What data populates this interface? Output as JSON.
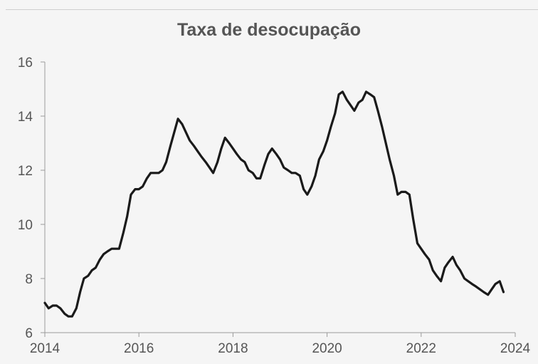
{
  "chart_data": {
    "type": "line",
    "title": "Taxa de desocupação",
    "xlabel": "",
    "ylabel": "",
    "xlim": [
      2014,
      2024
    ],
    "ylim": [
      6,
      16
    ],
    "xticks": [
      "2014",
      "2016",
      "2018",
      "2020",
      "2022",
      "2024"
    ],
    "yticks": [
      "6",
      "8",
      "10",
      "12",
      "14",
      "16"
    ],
    "grid": false,
    "legend": "none",
    "series": [
      {
        "color": "#1a1a1a",
        "points": [
          [
            2014.0,
            7.1
          ],
          [
            2014.08,
            6.9
          ],
          [
            2014.17,
            7.0
          ],
          [
            2014.25,
            7.0
          ],
          [
            2014.33,
            6.9
          ],
          [
            2014.42,
            6.7
          ],
          [
            2014.5,
            6.6
          ],
          [
            2014.58,
            6.6
          ],
          [
            2014.67,
            6.9
          ],
          [
            2014.75,
            7.5
          ],
          [
            2014.83,
            8.0
          ],
          [
            2014.92,
            8.1
          ],
          [
            2015.0,
            8.3
          ],
          [
            2015.08,
            8.4
          ],
          [
            2015.17,
            8.7
          ],
          [
            2015.25,
            8.9
          ],
          [
            2015.33,
            9.0
          ],
          [
            2015.42,
            9.1
          ],
          [
            2015.5,
            9.1
          ],
          [
            2015.58,
            9.1
          ],
          [
            2015.67,
            9.7
          ],
          [
            2015.75,
            10.3
          ],
          [
            2015.83,
            11.1
          ],
          [
            2015.92,
            11.3
          ],
          [
            2016.0,
            11.3
          ],
          [
            2016.08,
            11.4
          ],
          [
            2016.17,
            11.7
          ],
          [
            2016.25,
            11.9
          ],
          [
            2016.33,
            11.9
          ],
          [
            2016.42,
            11.9
          ],
          [
            2016.5,
            12.0
          ],
          [
            2016.58,
            12.3
          ],
          [
            2016.67,
            12.9
          ],
          [
            2016.75,
            13.4
          ],
          [
            2016.83,
            13.9
          ],
          [
            2016.92,
            13.7
          ],
          [
            2017.0,
            13.4
          ],
          [
            2017.08,
            13.1
          ],
          [
            2017.17,
            12.9
          ],
          [
            2017.25,
            12.7
          ],
          [
            2017.33,
            12.5
          ],
          [
            2017.42,
            12.3
          ],
          [
            2017.5,
            12.1
          ],
          [
            2017.58,
            11.9
          ],
          [
            2017.67,
            12.3
          ],
          [
            2017.75,
            12.8
          ],
          [
            2017.83,
            13.2
          ],
          [
            2017.92,
            13.0
          ],
          [
            2018.0,
            12.8
          ],
          [
            2018.08,
            12.6
          ],
          [
            2018.17,
            12.4
          ],
          [
            2018.25,
            12.3
          ],
          [
            2018.33,
            12.0
          ],
          [
            2018.42,
            11.9
          ],
          [
            2018.5,
            11.7
          ],
          [
            2018.58,
            11.7
          ],
          [
            2018.67,
            12.2
          ],
          [
            2018.75,
            12.6
          ],
          [
            2018.83,
            12.8
          ],
          [
            2018.92,
            12.6
          ],
          [
            2019.0,
            12.4
          ],
          [
            2019.08,
            12.1
          ],
          [
            2019.17,
            12.0
          ],
          [
            2019.25,
            11.9
          ],
          [
            2019.33,
            11.9
          ],
          [
            2019.42,
            11.8
          ],
          [
            2019.5,
            11.3
          ],
          [
            2019.58,
            11.1
          ],
          [
            2019.67,
            11.4
          ],
          [
            2019.75,
            11.8
          ],
          [
            2019.83,
            12.4
          ],
          [
            2019.92,
            12.7
          ],
          [
            2020.0,
            13.1
          ],
          [
            2020.08,
            13.6
          ],
          [
            2020.17,
            14.1
          ],
          [
            2020.25,
            14.8
          ],
          [
            2020.33,
            14.9
          ],
          [
            2020.42,
            14.6
          ],
          [
            2020.5,
            14.4
          ],
          [
            2020.58,
            14.2
          ],
          [
            2020.67,
            14.5
          ],
          [
            2020.75,
            14.6
          ],
          [
            2020.83,
            14.9
          ],
          [
            2020.92,
            14.8
          ],
          [
            2021.0,
            14.7
          ],
          [
            2021.08,
            14.2
          ],
          [
            2021.17,
            13.6
          ],
          [
            2021.25,
            13.0
          ],
          [
            2021.33,
            12.4
          ],
          [
            2021.42,
            11.8
          ],
          [
            2021.5,
            11.1
          ],
          [
            2021.58,
            11.2
          ],
          [
            2021.67,
            11.2
          ],
          [
            2021.75,
            11.1
          ],
          [
            2021.83,
            10.2
          ],
          [
            2021.92,
            9.3
          ],
          [
            2022.0,
            9.1
          ],
          [
            2022.08,
            8.9
          ],
          [
            2022.17,
            8.7
          ],
          [
            2022.25,
            8.3
          ],
          [
            2022.33,
            8.1
          ],
          [
            2022.42,
            7.9
          ],
          [
            2022.5,
            8.4
          ],
          [
            2022.58,
            8.6
          ],
          [
            2022.67,
            8.8
          ],
          [
            2022.75,
            8.5
          ],
          [
            2022.83,
            8.3
          ],
          [
            2022.92,
            8.0
          ],
          [
            2023.0,
            7.9
          ],
          [
            2023.08,
            7.8
          ],
          [
            2023.17,
            7.7
          ],
          [
            2023.25,
            7.6
          ],
          [
            2023.33,
            7.5
          ],
          [
            2023.42,
            7.4
          ],
          [
            2023.5,
            7.6
          ],
          [
            2023.58,
            7.8
          ],
          [
            2023.67,
            7.9
          ],
          [
            2023.75,
            7.5
          ]
        ]
      }
    ]
  }
}
